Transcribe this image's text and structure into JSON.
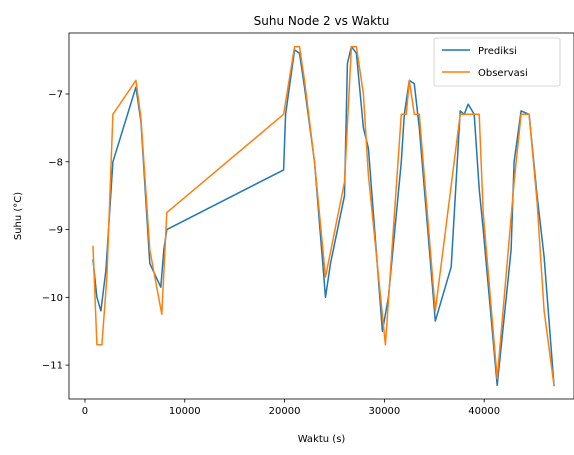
{
  "chart_data": {
    "type": "line",
    "title": "Suhu Node 2 vs Waktu",
    "xlabel": "Waktu (s)",
    "ylabel": "Suhu (°C)",
    "xlim": [
      -1600,
      49000
    ],
    "ylim": [
      -11.5,
      -6.1
    ],
    "xticks": [
      0,
      10000,
      20000,
      30000,
      40000
    ],
    "xtick_labels": [
      "0",
      "10000",
      "20000",
      "30000",
      "40000"
    ],
    "yticks": [
      -11,
      -10,
      -9,
      -8,
      -7
    ],
    "ytick_labels": [
      "−11",
      "−10",
      "−9",
      "−8",
      "−7"
    ],
    "grid": false,
    "legend_position": "upper-right",
    "series": [
      {
        "name": "Prediksi",
        "color": "#1f77b4",
        "points": [
          [
            800,
            -9.45
          ],
          [
            1200,
            -10.0
          ],
          [
            1600,
            -10.2
          ],
          [
            2100,
            -9.6
          ],
          [
            2800,
            -8.0
          ],
          [
            5100,
            -6.9
          ],
          [
            5600,
            -7.4
          ],
          [
            6500,
            -9.5
          ],
          [
            7600,
            -9.85
          ],
          [
            7900,
            -9.3
          ],
          [
            8200,
            -9.0
          ],
          [
            19900,
            -8.12
          ],
          [
            20100,
            -7.3
          ],
          [
            21000,
            -6.35
          ],
          [
            21500,
            -6.4
          ],
          [
            22000,
            -6.9
          ],
          [
            23000,
            -8.0
          ],
          [
            24100,
            -10.0
          ],
          [
            24600,
            -9.5
          ],
          [
            26000,
            -8.5
          ],
          [
            26300,
            -6.55
          ],
          [
            26700,
            -6.3
          ],
          [
            27200,
            -6.4
          ],
          [
            27900,
            -7.5
          ],
          [
            28400,
            -7.8
          ],
          [
            29800,
            -10.5
          ],
          [
            30400,
            -10.0
          ],
          [
            31700,
            -8.0
          ],
          [
            32000,
            -7.3
          ],
          [
            32500,
            -6.8
          ],
          [
            33000,
            -6.85
          ],
          [
            33500,
            -7.5
          ],
          [
            35100,
            -10.35
          ],
          [
            36700,
            -9.55
          ],
          [
            37600,
            -7.25
          ],
          [
            38000,
            -7.3
          ],
          [
            38400,
            -7.15
          ],
          [
            39000,
            -7.3
          ],
          [
            39500,
            -8.4
          ],
          [
            39900,
            -9.0
          ],
          [
            41300,
            -11.3
          ],
          [
            42700,
            -9.3
          ],
          [
            43000,
            -8.0
          ],
          [
            43700,
            -7.25
          ],
          [
            44500,
            -7.3
          ],
          [
            45300,
            -8.5
          ],
          [
            46000,
            -9.4
          ],
          [
            47000,
            -11.3
          ]
        ]
      },
      {
        "name": "Observasi",
        "color": "#ff7f0e",
        "points": [
          [
            800,
            -9.25
          ],
          [
            1200,
            -10.7
          ],
          [
            1700,
            -10.7
          ],
          [
            2200,
            -9.7
          ],
          [
            2800,
            -7.3
          ],
          [
            5100,
            -6.8
          ],
          [
            5600,
            -7.35
          ],
          [
            6500,
            -9.3
          ],
          [
            7700,
            -10.25
          ],
          [
            8200,
            -8.75
          ],
          [
            19900,
            -7.3
          ],
          [
            21000,
            -6.3
          ],
          [
            21500,
            -6.3
          ],
          [
            22000,
            -6.8
          ],
          [
            23000,
            -8.0
          ],
          [
            24100,
            -9.7
          ],
          [
            26000,
            -8.3
          ],
          [
            26700,
            -6.3
          ],
          [
            27200,
            -6.3
          ],
          [
            27900,
            -7.0
          ],
          [
            28400,
            -8.2
          ],
          [
            30100,
            -10.7
          ],
          [
            31700,
            -7.3
          ],
          [
            32200,
            -7.3
          ],
          [
            32500,
            -6.8
          ],
          [
            33000,
            -7.3
          ],
          [
            33500,
            -7.3
          ],
          [
            35100,
            -10.2
          ],
          [
            37600,
            -7.3
          ],
          [
            38000,
            -7.3
          ],
          [
            38600,
            -7.3
          ],
          [
            39500,
            -7.3
          ],
          [
            39900,
            -8.75
          ],
          [
            41300,
            -11.2
          ],
          [
            43000,
            -8.3
          ],
          [
            43700,
            -7.3
          ],
          [
            44500,
            -7.3
          ],
          [
            45300,
            -8.6
          ],
          [
            46000,
            -10.2
          ],
          [
            47000,
            -11.3
          ]
        ]
      }
    ]
  }
}
